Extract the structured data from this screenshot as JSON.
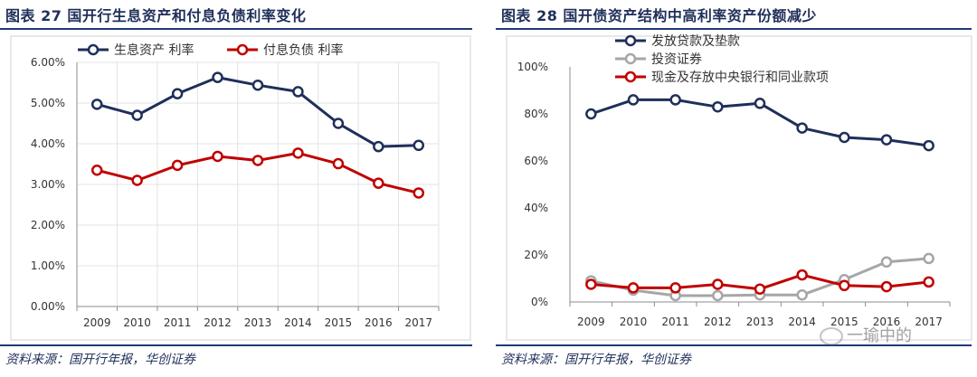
{
  "chart_data": [
    {
      "type": "line",
      "figure_title": "图表 27 国开行生息资产和付息负债利率变化",
      "source": "资料来源：国开行年报，华创证券",
      "categories": [
        "2009",
        "2010",
        "2011",
        "2012",
        "2013",
        "2014",
        "2015",
        "2016",
        "2017"
      ],
      "yticks": [
        "0.00%",
        "1.00%",
        "2.00%",
        "3.00%",
        "4.00%",
        "5.00%",
        "6.00%"
      ],
      "ylim": [
        0,
        6
      ],
      "grid": true,
      "legend_position": "top",
      "series": [
        {
          "name": "生息资产 利率",
          "color": "#1f2f5a",
          "values": [
            4.97,
            4.7,
            5.23,
            5.63,
            5.44,
            5.28,
            4.5,
            3.93,
            3.96
          ]
        },
        {
          "name": "付息负债 利率",
          "color": "#c00000",
          "values": [
            3.35,
            3.1,
            3.47,
            3.69,
            3.59,
            3.77,
            3.51,
            3.03,
            2.79
          ]
        }
      ]
    },
    {
      "type": "line",
      "figure_title": "图表 28 国开债资产结构中高利率资产份额减少",
      "source": "资料来源：国开行年报，华创证券",
      "categories": [
        "2009",
        "2010",
        "2011",
        "2012",
        "2013",
        "2014",
        "2015",
        "2016",
        "2017"
      ],
      "yticks": [
        "0%",
        "20%",
        "40%",
        "60%",
        "80%",
        "100%"
      ],
      "ylim": [
        0,
        100
      ],
      "grid": false,
      "legend_position": "top-left",
      "series": [
        {
          "name": "发放贷款及垫款",
          "color": "#1f2f5a",
          "values": [
            80,
            86,
            86,
            83,
            84.5,
            74,
            70,
            69,
            66.5
          ]
        },
        {
          "name": "投资证券",
          "color": "#a6a6a6",
          "values": [
            9,
            5,
            2.7,
            2.7,
            3,
            3,
            9.5,
            17,
            18.5
          ]
        },
        {
          "name": "现金及存放中央银行和同业款项",
          "color": "#c00000",
          "values": [
            7.5,
            6,
            6,
            7.5,
            5.5,
            11.5,
            7,
            6.5,
            8.5
          ]
        }
      ]
    }
  ],
  "watermark": "一瑜中的"
}
